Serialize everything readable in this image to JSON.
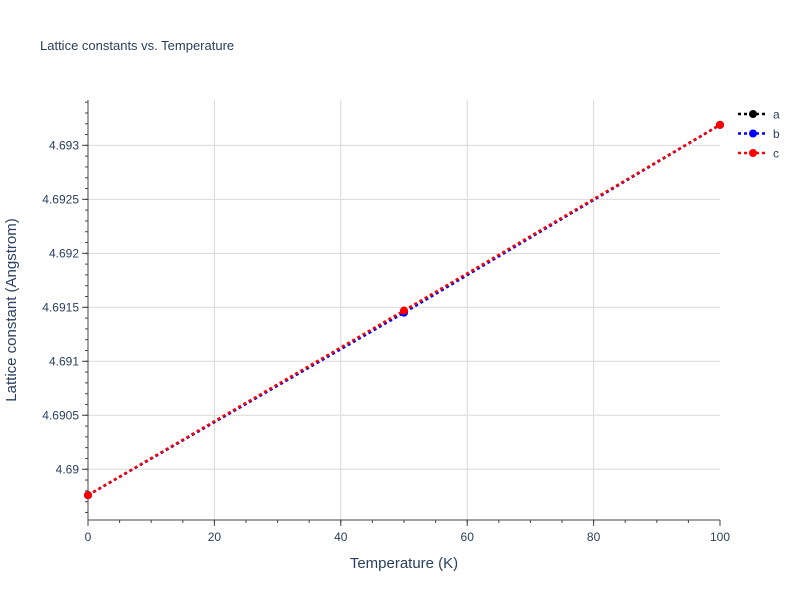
{
  "chart_data": {
    "type": "line",
    "title": "Lattice constants vs. Temperature",
    "xlabel": "Temperature (K)",
    "ylabel": "Lattice constant (Angstrom)",
    "xlim": [
      0,
      100
    ],
    "ylim": [
      4.68953,
      4.69342
    ],
    "xticks": [
      0,
      20,
      40,
      60,
      80,
      100
    ],
    "xtick_labels": [
      "0",
      "20",
      "40",
      "60",
      "80",
      "100"
    ],
    "yticks": [
      4.69,
      4.6905,
      4.691,
      4.6915,
      4.692,
      4.6925,
      4.693
    ],
    "ytick_labels": [
      "4.69",
      "4.6905",
      "4.691",
      "4.6915",
      "4.692",
      "4.6925",
      "4.693"
    ],
    "grid": true,
    "legend_position": "top-right",
    "series": [
      {
        "name": "a",
        "color": "#000000",
        "x": [
          0,
          50,
          100
        ],
        "y": [
          4.68976,
          4.69146,
          4.69319
        ]
      },
      {
        "name": "b",
        "color": "#0000ff",
        "x": [
          0,
          50,
          100
        ],
        "y": [
          4.68976,
          4.69145,
          4.69319
        ]
      },
      {
        "name": "c",
        "color": "#ff0000",
        "x": [
          0,
          50,
          100
        ],
        "y": [
          4.68976,
          4.69147,
          4.69319
        ]
      }
    ]
  }
}
